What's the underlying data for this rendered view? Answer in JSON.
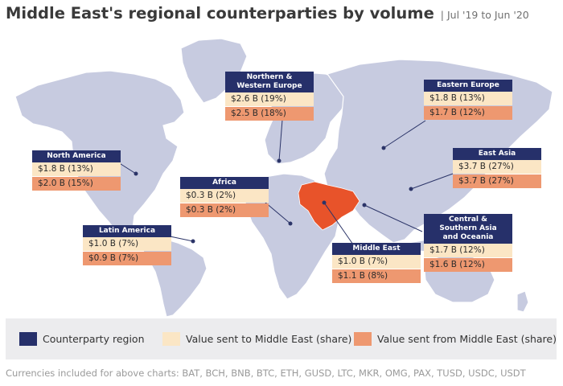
{
  "header": {
    "title": "Middle East's regional counterparties by volume",
    "subtitle": "| Jul '19 to Jun '20"
  },
  "colors": {
    "region_header": "#26306a",
    "value_to": "#fbe6c5",
    "value_from": "#ee9870",
    "highlight_region": "#e8532a",
    "land": "#c7cbe0"
  },
  "regions": [
    {
      "id": "northern-western-europe",
      "name": "Northern &\nWestern Europe",
      "to": "$2.6 B (19%)",
      "from": "$2.5 B (18%)"
    },
    {
      "id": "eastern-europe",
      "name": "Eastern Europe",
      "to": "$1.8 B (13%)",
      "from": "$1.7 B (12%)"
    },
    {
      "id": "north-america",
      "name": "North America",
      "to": "$1.8 B (13%)",
      "from": "$2.0 B (15%)"
    },
    {
      "id": "east-asia",
      "name": "East Asia",
      "to": "$3.7 B (27%)",
      "from": "$3.7 B (27%)"
    },
    {
      "id": "africa",
      "name": "Africa",
      "to": "$0.3 B (2%)",
      "from": "$0.3 B (2%)"
    },
    {
      "id": "central-southern-asia-oceania",
      "name": "Central &\nSouthern Asia\nand Oceania",
      "to": "$1.7 B (12%)",
      "from": "$1.6 B (12%)"
    },
    {
      "id": "latin-america",
      "name": "Latin America",
      "to": "$1.0 B (7%)",
      "from": "$0.9 B (7%)"
    },
    {
      "id": "middle-east",
      "name": "Middle East",
      "to": "$1.0 B (7%)",
      "from": "$1.1 B (8%)"
    }
  ],
  "legend": {
    "counterparty_region": "Counterparty region",
    "value_sent_to": "Value sent to Middle East (share)",
    "value_sent_from": "Value sent from Middle East (share)"
  },
  "footnote": "Currencies included for above charts: BAT, BCH, BNB, BTC, ETH, GUSD, LTC, MKR, OMG, PAX, TUSD, USDC, USDT"
}
